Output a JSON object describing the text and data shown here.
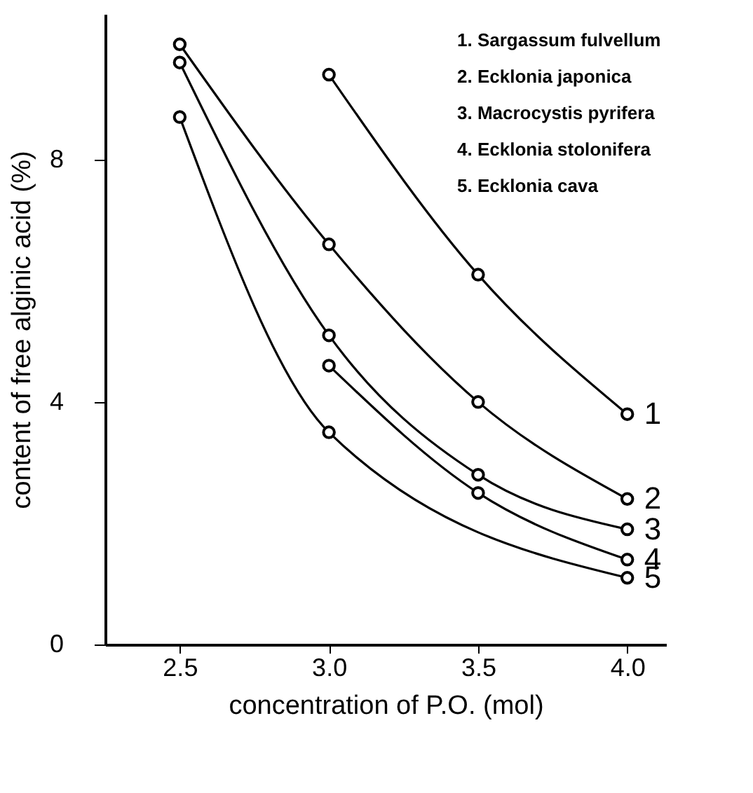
{
  "chart_data": {
    "type": "line",
    "xlabel": "concentration of P.O. (mol)",
    "ylabel": "content of free alginic acid (%)",
    "xlim": [
      2.25,
      4.13
    ],
    "xticks": [
      2.5,
      {
        "value": 3,
        "label": "3.0"
      },
      3.5,
      {
        "value": 4,
        "label": "4.0"
      }
    ],
    "ylim": [
      0,
      10.4
    ],
    "yticks": [
      0,
      4,
      8
    ],
    "series": [
      {
        "name": "1",
        "color": "#000000",
        "x": [
          3.0,
          3.5,
          4.0
        ],
        "values": [
          9.4,
          6.1,
          3.8
        ]
      },
      {
        "name": "2",
        "color": "#000000",
        "x": [
          2.5,
          3.0,
          3.5,
          4.0
        ],
        "values": [
          9.9,
          6.6,
          4.0,
          2.4
        ]
      },
      {
        "name": "3",
        "color": "#000000",
        "x": [
          2.5,
          3.0,
          3.5,
          4.0
        ],
        "values": [
          9.6,
          5.1,
          2.8,
          1.9
        ]
      },
      {
        "name": "4",
        "color": "#000000",
        "x": [
          3.0,
          3.5,
          4.0
        ],
        "values": [
          4.6,
          2.5,
          1.4
        ]
      },
      {
        "name": "5",
        "color": "#000000",
        "x": [
          2.5,
          3.0,
          4.0
        ],
        "values": [
          8.7,
          3.5,
          1.1
        ]
      }
    ],
    "annotations": [
      "1. Sargassum fulvellum",
      "2. Ecklonia japonica",
      "3. Macrocystis pyrifera",
      "4. Ecklonia stolonifera",
      "5. Ecklonia cava"
    ],
    "marker": "circle",
    "line_style": "solid",
    "grid": false
  }
}
